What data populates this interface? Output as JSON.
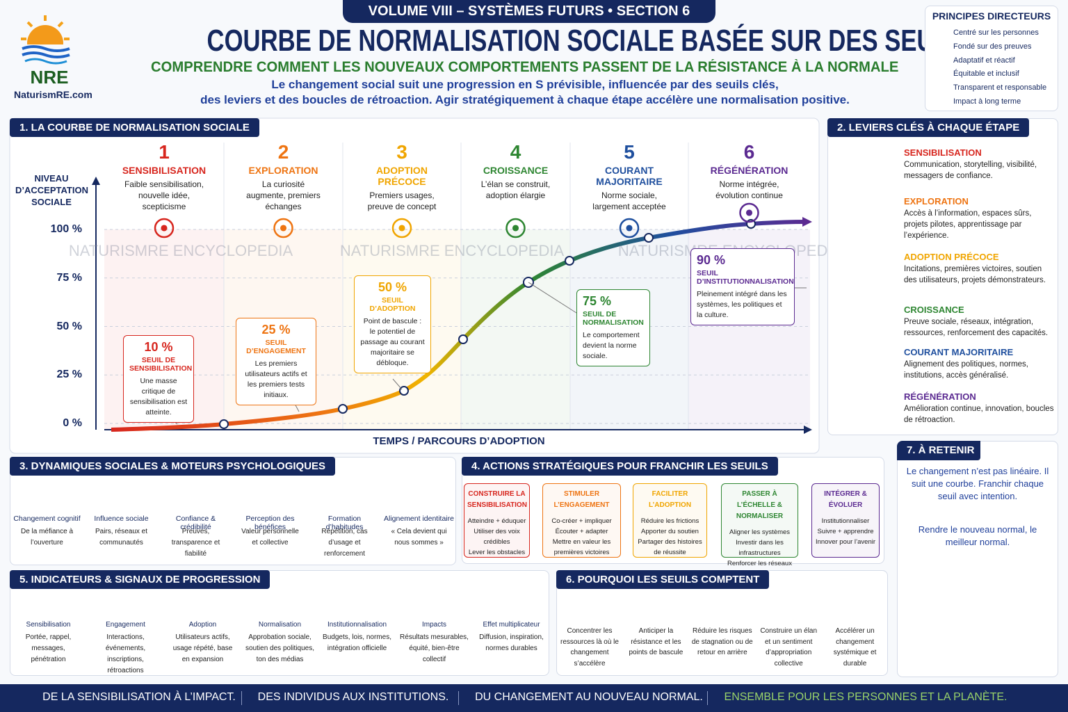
{
  "header": {
    "logo": "NRE",
    "site": "NaturismRE.com",
    "volume": "VOLUME VIII – SYSTÈMES FUTURS • SECTION 6",
    "title": "COURBE DE NORMALISATION SOCIALE BASÉE SUR DES SEUILS",
    "subtitle": "COMPRENDRE COMMENT LES NOUVEAUX COMPORTEMENTS PASSENT DE LA RÉSISTANCE À LA NORMALE",
    "intro": [
      "Le changement social suit une progression en S prévisible, influencée par des seuils clés,",
      "des leviers et des boucles de rétroaction. Agir stratégiquement à chaque étape accélère une normalisation positive."
    ]
  },
  "principles": {
    "title": "PRINCIPES DIRECTEURS",
    "items": [
      "Centré sur les personnes",
      "Fondé sur des preuves",
      "Adaptatif et réactif",
      "Équitable et inclusif",
      "Transparent et responsable",
      "Impact à long terme"
    ]
  },
  "watermark": "NATURISMRE ENCYCLOPEDIA",
  "curve": {
    "title": "1. LA COURBE DE NORMALISATION SOCIALE",
    "y_label": "NIVEAU D’ACCEPTATION SOCIALE",
    "x_label": "TEMPS / PARCOURS D’ADOPTION",
    "yticks": [
      {
        "value": 100,
        "label": "100 %"
      },
      {
        "value": 75,
        "label": "75 %"
      },
      {
        "value": 50,
        "label": "50 %"
      },
      {
        "value": 25,
        "label": "25 %"
      },
      {
        "value": 0,
        "label": "0 %"
      }
    ],
    "stages": [
      {
        "number": 1,
        "name": "SENSIBILISATION",
        "text": "Faible sensibilisation, nouvelle idée, scepticisme",
        "color": "#d7261e"
      },
      {
        "number": 2,
        "name": "EXPLORATION",
        "text": "La curiosité augmente, premiers échanges",
        "color": "#ee7412"
      },
      {
        "number": 3,
        "name": "ADOPTION PRÉCOCE",
        "text": "Premiers usages, preuve de concept",
        "color": "#f0a500"
      },
      {
        "number": 4,
        "name": "CROISSANCE",
        "text": "L’élan se construit, adoption élargie",
        "color": "#2e8632"
      },
      {
        "number": 5,
        "name": "COURANT MAJORITAIRE",
        "text": "Norme sociale, largement acceptée",
        "color": "#1f4f9e"
      },
      {
        "number": 6,
        "name": "RÉGÉNÉRATION",
        "text": "Norme intégrée, évolution continue",
        "color": "#5b2a91"
      }
    ],
    "thresholds": [
      {
        "value_label": "10 %",
        "name": "SEUIL DE SENSIBILISATION",
        "text": "Une masse critique de sensibilisation est atteinte."
      },
      {
        "value_label": "25 %",
        "name": "SEUIL D’ENGAGEMENT",
        "text": "Les premiers utilisateurs actifs et les premiers tests initiaux."
      },
      {
        "value_label": "50 %",
        "name": "SEUIL D’ADOPTION",
        "text": "Point de bascule : le potentiel de passage au courant majoritaire se débloque."
      },
      {
        "value_label": "75 %",
        "name": "SEUIL DE NORMALISATION",
        "text": "Le comportement devient la norme sociale."
      },
      {
        "value_label": "90 %",
        "name": "SEUIL D’INSTITUTIONNALISATION",
        "text": "Pleinement intégré dans les systèmes, les politiques et la culture."
      }
    ]
  },
  "levers": {
    "title": "2. LEVIERS CLÉS À CHAQUE ÉTAPE",
    "items": [
      "Communication, storytelling, visibilité, messagers de confiance.",
      "Accès à l’information, espaces sûrs, projets pilotes, apprentissage par l’expérience.",
      "Incitations, premières victoires, soutien des utilisateurs, projets démonstrateurs.",
      "Preuve sociale, réseaux, intégration, ressources, renforcement des capacités.",
      "Alignement des politiques, normes, institutions, accès généralisé.",
      "Amélioration continue, innovation, boucles de rétroaction."
    ]
  },
  "dynamics": {
    "title": "3. DYNAMIQUES SOCIALES & MOTEURS PSYCHOLOGIQUES",
    "items": [
      {
        "name": "Changement cognitif",
        "text": "De la méfiance à l’ouverture"
      },
      {
        "name": "Influence sociale",
        "text": "Pairs, réseaux et communautés"
      },
      {
        "name": "Confiance & crédibilité",
        "text": "Preuves, transparence et fiabilité"
      },
      {
        "name": "Perception des bénéfices",
        "text": "Valeur personnelle et collective"
      },
      {
        "name": "Formation d’habitudes",
        "text": "Répétition, cas d’usage et renforcement"
      },
      {
        "name": "Alignement identitaire",
        "text": "« Cela devient qui nous sommes »"
      }
    ]
  },
  "actions": {
    "title": "4. ACTIONS STRATÉGIQUES POUR FRANCHIR LES SEUILS",
    "cards": [
      {
        "name": "CONSTRUIRE LA SENSIBILISATION",
        "lines": [
          "Atteindre + éduquer",
          "Utiliser des voix crédibles",
          "Lever les obstacles"
        ]
      },
      {
        "name": "STIMULER L’ENGAGEMENT",
        "lines": [
          "Co-créer + impliquer",
          "Écouter + adapter",
          "Mettre en valeur les premières victoires"
        ]
      },
      {
        "name": "FACILITER L’ADOPTION",
        "lines": [
          "Réduire les frictions",
          "Apporter du soutien",
          "Partager des histoires de réussite"
        ]
      },
      {
        "name": "PASSER À L’ÉCHELLE & NORMALISER",
        "lines": [
          "Aligner les systèmes",
          "Investir dans les infrastructures",
          "Renforcer les réseaux"
        ]
      },
      {
        "name": "INTÉGRER & ÉVOLUER",
        "lines": [
          "Institutionnaliser",
          "Suivre + apprendre",
          "Innover pour l’avenir"
        ]
      }
    ]
  },
  "indicators": {
    "title": "5. INDICATEURS & SIGNAUX DE PROGRESSION",
    "items": [
      {
        "name": "Sensibilisation",
        "text": "Portée, rappel, messages, pénétration"
      },
      {
        "name": "Engagement",
        "text": "Interactions, événements, inscriptions, rétroactions"
      },
      {
        "name": "Adoption",
        "text": "Utilisateurs actifs, usage répété, base en expansion"
      },
      {
        "name": "Normalisation",
        "text": "Approbation sociale, soutien des politiques, ton des médias"
      },
      {
        "name": "Institutionnalisation",
        "text": "Budgets, lois, normes, intégration officielle"
      },
      {
        "name": "Impacts",
        "text": "Résultats mesurables, équité, bien-être collectif"
      },
      {
        "name": "Effet multiplicateur",
        "text": "Diffusion, inspiration, normes durables"
      }
    ]
  },
  "why": {
    "title": "6. POURQUOI LES SEUILS COMPTENT",
    "items": [
      "Concentrer les ressources là où le changement s’accélère",
      "Anticiper la résistance et les points de bascule",
      "Réduire les risques de stagnation ou de retour en arrière",
      "Construire un élan et un sentiment d’appropriation collective",
      "Accélérer un changement systémique et durable"
    ]
  },
  "takeaway": {
    "title": "7. À RETENIR",
    "text": "Le changement n’est pas linéaire. Il suit une courbe. Franchir chaque seuil avec intention.",
    "closing": "Rendre le nouveau normal, le meilleur normal."
  },
  "footer": [
    "DE LA SENSIBILISATION À L’IMPACT.",
    "DES INDIVIDUS AUX INSTITUTIONS.",
    "DU CHANGEMENT AU NOUVEAU NORMAL.",
    "ENSEMBLE POUR LES PERSONNES ET LA PLANÈTE."
  ]
}
